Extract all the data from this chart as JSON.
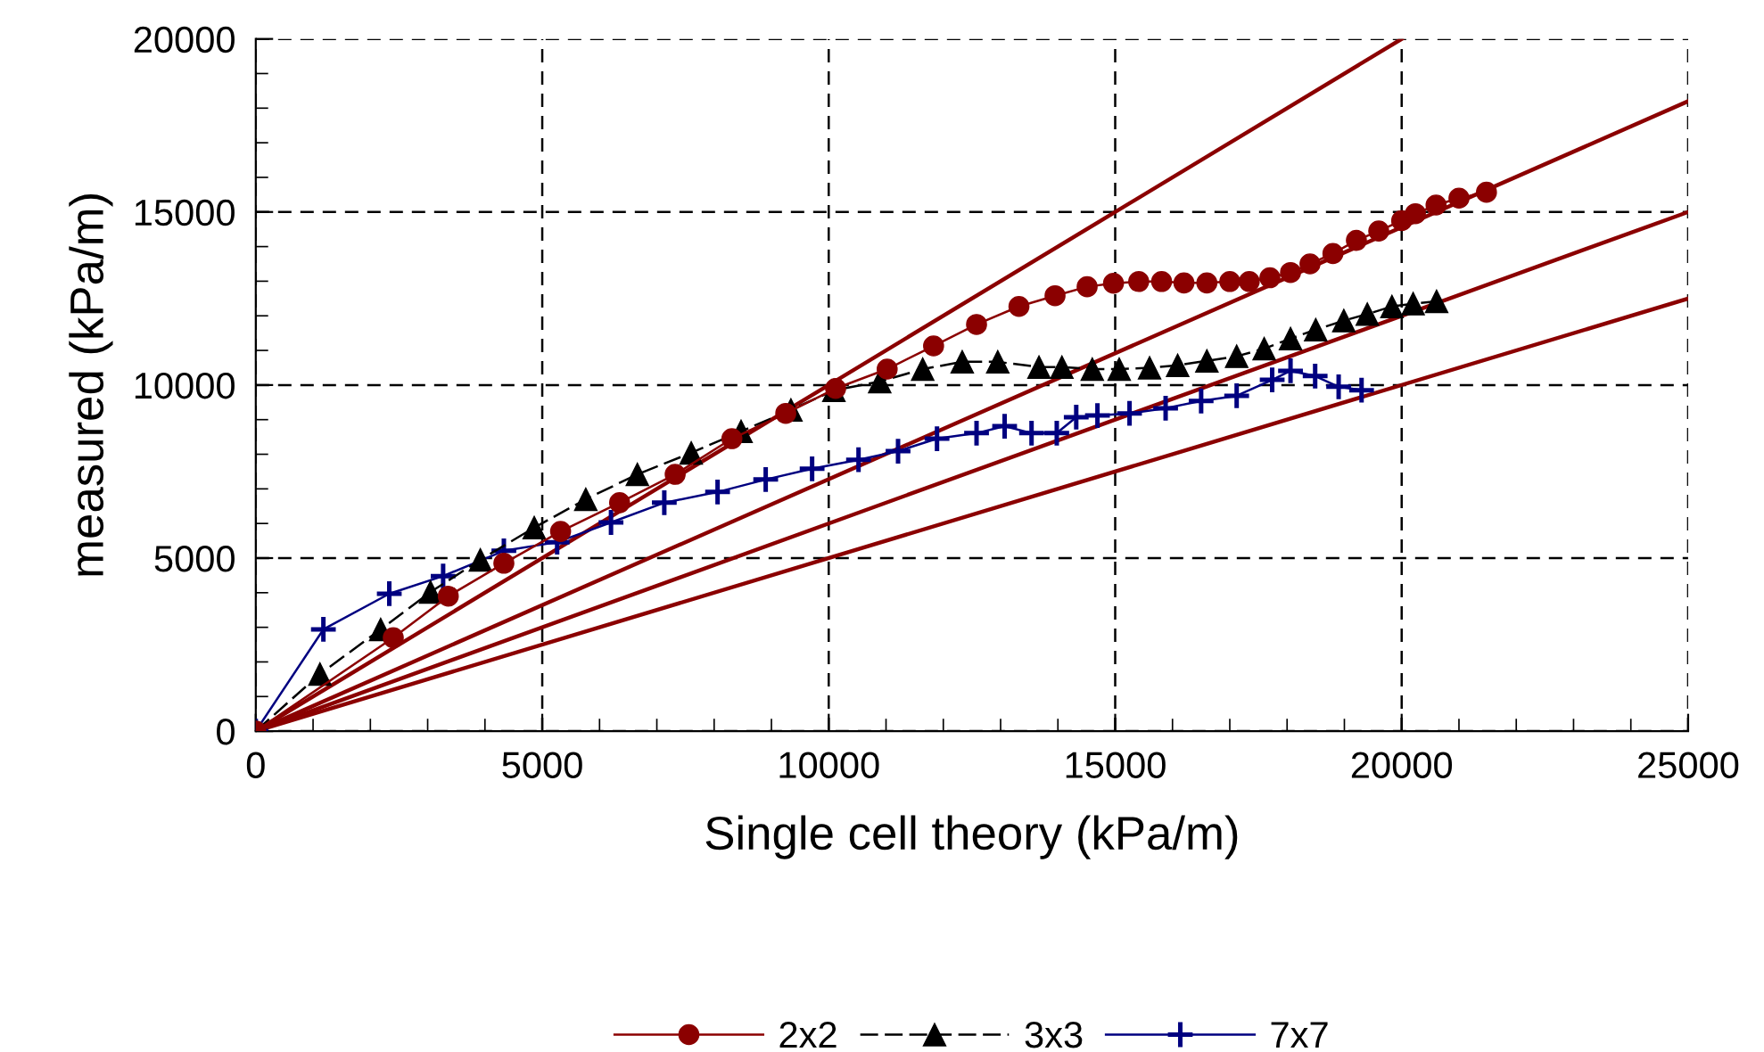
{
  "chart_data": {
    "type": "line",
    "xlabel": "Single cell theory (kPa/m)",
    "ylabel": "measured (kPa/m)",
    "xlim": [
      0,
      25000
    ],
    "ylim": [
      0,
      20000
    ],
    "xticks": [
      0,
      5000,
      10000,
      15000,
      20000,
      25000,
      {
        "value": 1000,
        "label": null
      },
      {
        "value": 2000,
        "label": null
      },
      {
        "value": 3000,
        "label": null
      },
      {
        "value": 4000,
        "label": null
      },
      {
        "value": 6000,
        "label": null
      },
      {
        "value": 7000,
        "label": null
      },
      {
        "value": 8000,
        "label": null
      },
      {
        "value": 9000,
        "label": null
      },
      {
        "value": 11000,
        "label": null
      },
      {
        "value": 12000,
        "label": null
      },
      {
        "value": 13000,
        "label": null
      },
      {
        "value": 14000,
        "label": null
      },
      {
        "value": 16000,
        "label": null
      },
      {
        "value": 17000,
        "label": null
      },
      {
        "value": 18000,
        "label": null
      },
      {
        "value": 19000,
        "label": null
      },
      {
        "value": 21000,
        "label": null
      },
      {
        "value": 22000,
        "label": null
      },
      {
        "value": 23000,
        "label": null
      },
      {
        "value": 24000,
        "label": null
      }
    ],
    "yticks": [
      0,
      5000,
      10000,
      15000,
      20000,
      {
        "value": 1000,
        "label": null
      },
      {
        "value": 2000,
        "label": null
      },
      {
        "value": 3000,
        "label": null
      },
      {
        "value": 4000,
        "label": null
      },
      {
        "value": 6000,
        "label": null
      },
      {
        "value": 7000,
        "label": null
      },
      {
        "value": 8000,
        "label": null
      },
      {
        "value": 9000,
        "label": null
      },
      {
        "value": 11000,
        "label": null
      },
      {
        "value": 12000,
        "label": null
      },
      {
        "value": 13000,
        "label": null
      },
      {
        "value": 14000,
        "label": null
      },
      {
        "value": 16000,
        "label": null
      },
      {
        "value": 17000,
        "label": null
      },
      {
        "value": 18000,
        "label": null
      },
      {
        "value": 19000,
        "label": null
      }
    ],
    "grid": true,
    "legend": "bottom",
    "series": [
      {
        "name": "2x2",
        "color": "#8b0000",
        "marker": "circle",
        "line_style": "solid",
        "x": [
          0,
          2400,
          3360,
          4330,
          5320,
          6350,
          7320,
          8310,
          9250,
          10120,
          11020,
          11830,
          12580,
          13320,
          13950,
          14510,
          14970,
          15410,
          15810,
          16200,
          16600,
          17000,
          17340,
          17700,
          18060,
          18400,
          18800,
          19210,
          19600,
          20000,
          20240,
          20600,
          21000,
          21480
        ],
        "values": [
          0,
          2700,
          3900,
          4850,
          5770,
          6600,
          7420,
          8450,
          9180,
          9900,
          10460,
          11130,
          11750,
          12270,
          12580,
          12840,
          12940,
          12990,
          12990,
          12950,
          12950,
          12990,
          12990,
          13100,
          13250,
          13500,
          13800,
          14180,
          14450,
          14750,
          14950,
          15200,
          15400,
          15570
        ]
      },
      {
        "name": "3x3",
        "color": "#000000",
        "marker": "triangle",
        "line_style": "dashed",
        "x": [
          0,
          1120,
          2180,
          3050,
          3920,
          4860,
          5760,
          6660,
          7600,
          8470,
          9340,
          10090,
          10890,
          11640,
          12330,
          12950,
          13670,
          14070,
          14600,
          15070,
          15600,
          16090,
          16600,
          17120,
          17600,
          18060,
          18500,
          18990,
          19400,
          19830,
          20200,
          20610
        ],
        "values": [
          0,
          1650,
          2940,
          4020,
          4950,
          5880,
          6700,
          7420,
          8040,
          8660,
          9280,
          9850,
          10100,
          10460,
          10670,
          10670,
          10520,
          10520,
          10460,
          10460,
          10500,
          10570,
          10700,
          10830,
          11050,
          11340,
          11600,
          11860,
          12050,
          12270,
          12350,
          12420
        ]
      },
      {
        "name": "7x7",
        "color": "#000080",
        "marker": "cross",
        "line_style": "solid",
        "x": [
          0,
          1180,
          2330,
          3270,
          4330,
          5260,
          6200,
          7130,
          8060,
          8900,
          9710,
          10520,
          11210,
          11890,
          12580,
          13070,
          13540,
          13980,
          14320,
          14690,
          15250,
          15880,
          16500,
          17120,
          17740,
          18060,
          18490,
          18900,
          19300
        ],
        "values": [
          0,
          2940,
          3970,
          4480,
          5210,
          5460,
          6030,
          6600,
          6910,
          7270,
          7580,
          7840,
          8090,
          8450,
          8610,
          8810,
          8610,
          8610,
          9070,
          9120,
          9180,
          9330,
          9540,
          9690,
          10150,
          10410,
          10260,
          9950,
          9850
        ]
      },
      {
        "color": "#8b0000",
        "marker": "none",
        "line_style": "solid",
        "x": [
          0,
          20000
        ],
        "values": [
          0,
          20000
        ]
      },
      {
        "color": "#8b0000",
        "marker": "none",
        "line_style": "solid",
        "x": [
          0,
          25000
        ],
        "values": [
          0,
          18200
        ]
      },
      {
        "color": "#8b0000",
        "marker": "none",
        "line_style": "solid",
        "x": [
          0,
          25000
        ],
        "values": [
          0,
          15000
        ]
      },
      {
        "color": "#8b0000",
        "marker": "none",
        "line_style": "solid",
        "x": [
          0,
          25000
        ],
        "values": [
          0,
          12500
        ]
      }
    ]
  }
}
